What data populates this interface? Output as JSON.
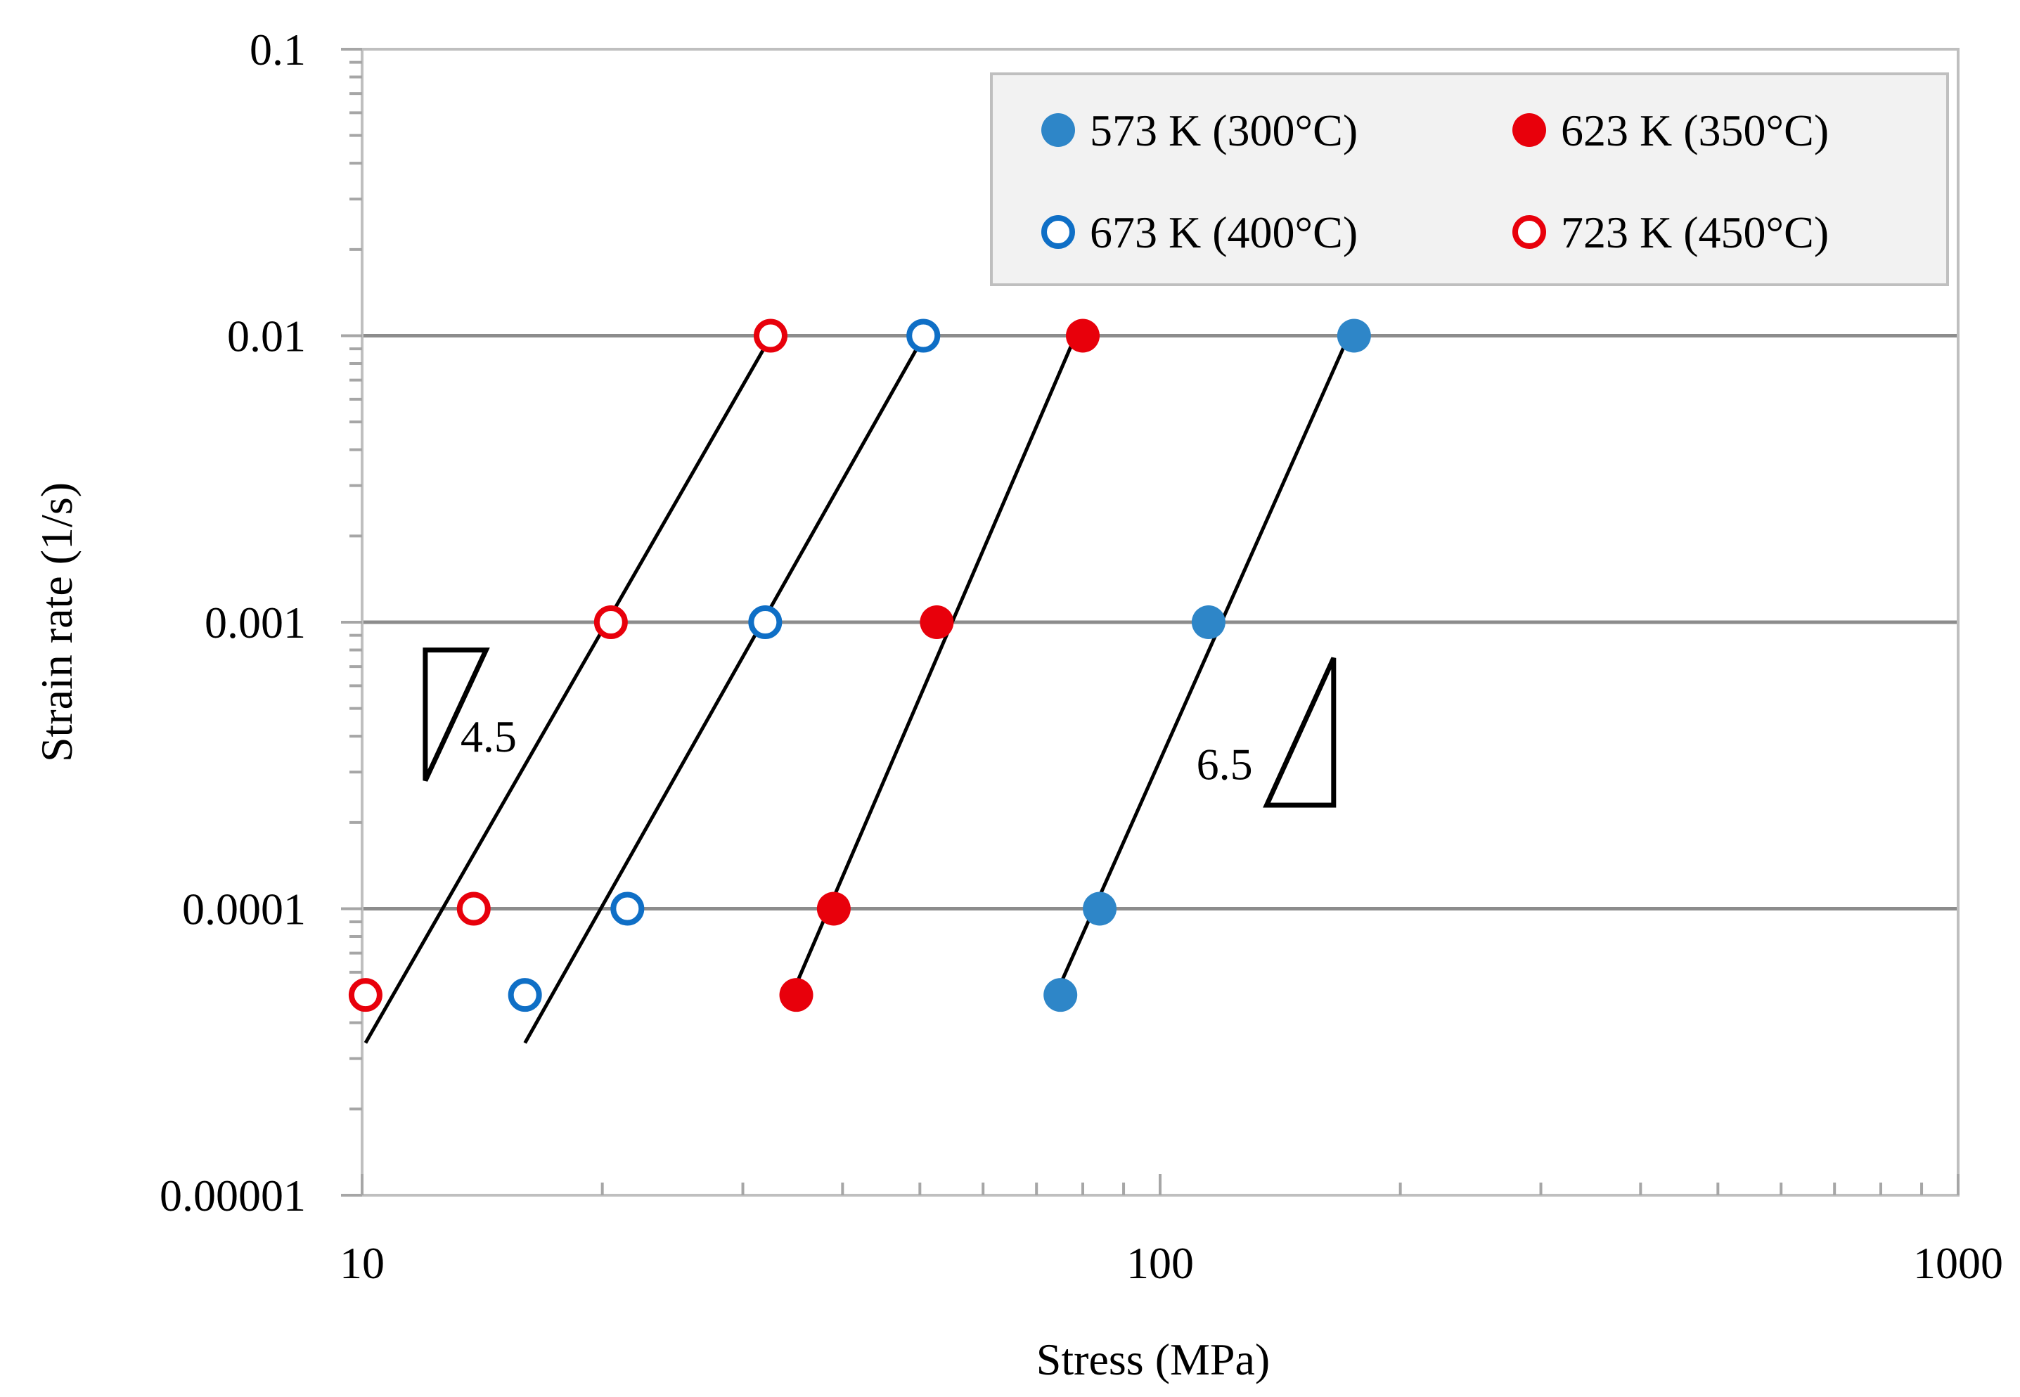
{
  "chart_data": {
    "type": "scatter",
    "title": "",
    "xlabel": "Stress (MPa)",
    "ylabel": "Strain rate (1/s)",
    "x_scale": "log",
    "y_scale": "log",
    "xlim": [
      10,
      1000
    ],
    "ylim": [
      1e-05,
      0.1
    ],
    "x_ticks": [
      {
        "value": 10,
        "label": "10"
      },
      {
        "value": 100,
        "label": "100"
      },
      {
        "value": 1000,
        "label": "1000"
      }
    ],
    "y_ticks": [
      {
        "value": 0.1,
        "label": "0.1"
      },
      {
        "value": 0.01,
        "label": "0.01"
      },
      {
        "value": 0.001,
        "label": "0.001"
      },
      {
        "value": 0.0001,
        "label": "0.0001"
      },
      {
        "value": 1e-05,
        "label": "0.00001"
      }
    ],
    "gridlines_y": [
      0.01,
      0.001,
      0.0001
    ],
    "legend_position": "top-right",
    "series": [
      {
        "name": "573 K (300°C)",
        "color": "#2E86C8",
        "marker": "filled",
        "points": [
          {
            "x": 75,
            "y": 5e-05
          },
          {
            "x": 84,
            "y": 0.0001
          },
          {
            "x": 115,
            "y": 0.001
          },
          {
            "x": 175,
            "y": 0.01
          }
        ],
        "fit": {
          "x": [
            75,
            175
          ],
          "y": [
            5.45e-05,
            0.011
          ]
        }
      },
      {
        "name": "623 K (350°C)",
        "color": "#E8000B",
        "marker": "filled",
        "points": [
          {
            "x": 35,
            "y": 5e-05
          },
          {
            "x": 39,
            "y": 0.0001
          },
          {
            "x": 52.5,
            "y": 0.001
          },
          {
            "x": 80,
            "y": 0.01
          }
        ],
        "fit": {
          "x": [
            35,
            79.5
          ],
          "y": [
            5.45e-05,
            0.011
          ]
        }
      },
      {
        "name": "673 K (400°C)",
        "color": "#0F6FC6",
        "marker": "open",
        "points": [
          {
            "x": 16,
            "y": 5e-05
          },
          {
            "x": 21.5,
            "y": 0.0001
          },
          {
            "x": 32,
            "y": 0.001
          },
          {
            "x": 50.5,
            "y": 0.01
          }
        ],
        "fit": {
          "x": [
            16,
            50.5
          ],
          "y": [
            3.4e-05,
            0.0099
          ]
        }
      },
      {
        "name": "723 K (450°C)",
        "color": "#E8000B",
        "marker": "open",
        "points": [
          {
            "x": 10.1,
            "y": 5e-05
          },
          {
            "x": 13.8,
            "y": 0.0001
          },
          {
            "x": 20.5,
            "y": 0.001
          },
          {
            "x": 32.5,
            "y": 0.01
          }
        ],
        "fit": {
          "x": [
            10.1,
            32.5
          ],
          "y": [
            3.4e-05,
            0.0099
          ]
        }
      }
    ],
    "annotations": [
      {
        "text": "4.5",
        "type": "slope-triangle",
        "corners": [
          [
            12,
            0.0008
          ],
          [
            14.3,
            0.0008
          ],
          [
            12,
            0.00028
          ]
        ]
      },
      {
        "text": "6.5",
        "type": "slope-triangle",
        "corners": [
          [
            165,
            0.00075
          ],
          [
            165,
            0.00023
          ],
          [
            136,
            0.00023
          ]
        ]
      }
    ]
  }
}
